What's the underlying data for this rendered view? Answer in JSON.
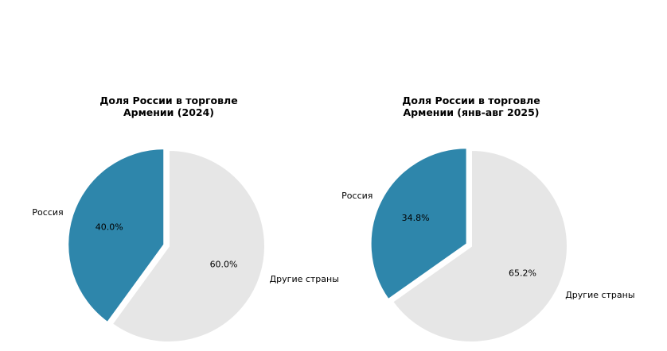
{
  "chart_data": [
    {
      "type": "pie",
      "title_lines": [
        "Доля России в торговле",
        "Армении (2024)"
      ],
      "slices": [
        {
          "label": "Россия",
          "value": 40.0,
          "pct_label": "40.0%",
          "color": "#2e86ab",
          "exploded": true
        },
        {
          "label": "Другие страны",
          "value": 60.0,
          "pct_label": "60.0%",
          "color": "#e6e6e6",
          "exploded": false
        }
      ],
      "start_angle": 90,
      "direction": "counterclockwise"
    },
    {
      "type": "pie",
      "title_lines": [
        "Доля России в торговле",
        "Армении (янв-авг 2025)"
      ],
      "slices": [
        {
          "label": "Россия",
          "value": 34.8,
          "pct_label": "34.8%",
          "color": "#2e86ab",
          "exploded": true
        },
        {
          "label": "Другие страны",
          "value": 65.2,
          "pct_label": "65.2%",
          "color": "#e6e6e6",
          "exploded": false
        }
      ],
      "start_angle": 90,
      "direction": "counterclockwise"
    }
  ]
}
